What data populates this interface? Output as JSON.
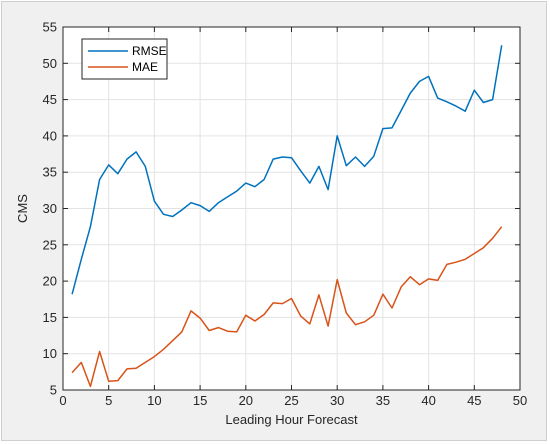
{
  "chart_data": {
    "type": "line",
    "xlabel": "Leading Hour Forecast",
    "ylabel": "CMS",
    "xlim": [
      0,
      50
    ],
    "ylim": [
      5,
      55
    ],
    "xticks": [
      0,
      5,
      10,
      15,
      20,
      25,
      30,
      35,
      40,
      45,
      50
    ],
    "yticks": [
      5,
      10,
      15,
      20,
      25,
      30,
      35,
      40,
      45,
      50,
      55
    ],
    "grid": true,
    "legend_position": "top-left",
    "x": [
      1,
      2,
      3,
      4,
      5,
      6,
      7,
      8,
      9,
      10,
      11,
      12,
      13,
      14,
      15,
      16,
      17,
      18,
      19,
      20,
      21,
      22,
      23,
      24,
      25,
      26,
      27,
      28,
      29,
      30,
      31,
      32,
      33,
      34,
      35,
      36,
      37,
      38,
      39,
      40,
      41,
      42,
      43,
      44,
      45,
      46,
      47,
      48
    ],
    "series": [
      {
        "name": "RMSE",
        "color": "#0072bd",
        "values": [
          18.2,
          23.0,
          27.5,
          34.0,
          36.0,
          34.8,
          36.8,
          37.8,
          35.8,
          31.0,
          29.2,
          28.9,
          29.8,
          30.8,
          30.4,
          29.6,
          30.8,
          31.6,
          32.4,
          33.5,
          33.0,
          34.0,
          36.8,
          37.1,
          37.0,
          35.2,
          33.5,
          35.8,
          32.6,
          40.0,
          35.9,
          37.1,
          35.8,
          37.2,
          41.0,
          41.1,
          43.5,
          45.9,
          47.5,
          48.2,
          45.2,
          44.7,
          44.1,
          43.4,
          46.3,
          44.6,
          45.0,
          52.5
        ]
      },
      {
        "name": "MAE",
        "color": "#d95319",
        "values": [
          7.4,
          8.8,
          5.5,
          10.3,
          6.2,
          6.3,
          7.9,
          8.0,
          8.8,
          9.6,
          10.6,
          11.8,
          13.0,
          15.9,
          14.9,
          13.2,
          13.6,
          13.1,
          13.0,
          15.3,
          14.5,
          15.4,
          17.0,
          16.9,
          17.6,
          15.2,
          14.1,
          18.1,
          13.8,
          20.2,
          15.6,
          14.0,
          14.4,
          15.3,
          18.2,
          16.3,
          19.2,
          20.6,
          19.5,
          20.3,
          20.1,
          22.3,
          22.6,
          23.0,
          23.8,
          24.6,
          25.9,
          27.5
        ]
      }
    ]
  }
}
